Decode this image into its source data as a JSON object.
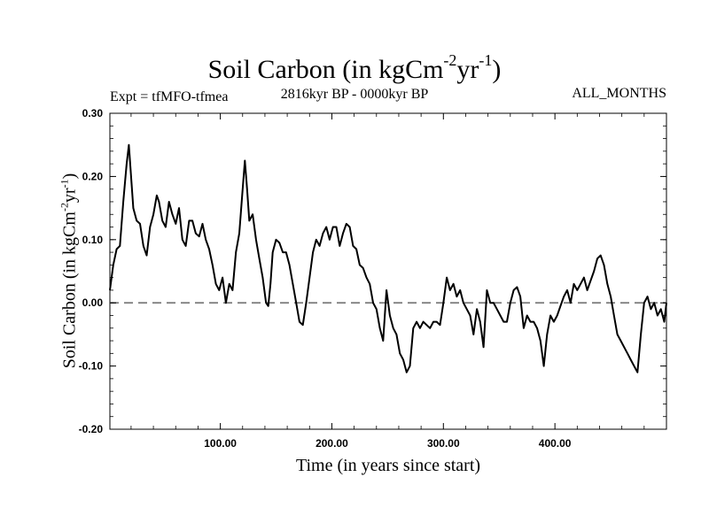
{
  "chart_data": {
    "type": "line",
    "title": "Soil Carbon (in kgCm-2yr-1)",
    "title_parts": {
      "base": "Soil Carbon (in kgCm",
      "exp1": "-2",
      "mid": "yr",
      "exp2": "-1",
      "end": ")"
    },
    "subtitle_left": "Expt = tfMFO-tfmea",
    "subtitle_center": "2816kyr BP - 0000kyr BP",
    "subtitle_right": "ALL_MONTHS",
    "xlabel": "Time (in years since start)",
    "ylabel": "Soil Carbon (in kgCm-2yr-1)",
    "ylabel_parts": {
      "base": "Soil Carbon (in kgCm",
      "exp1": "-2",
      "mid": "yr",
      "exp2": "-1",
      "end": ")"
    },
    "xlim": [
      1,
      500
    ],
    "ylim": [
      -0.2,
      0.3
    ],
    "xticks": [
      100,
      200,
      300,
      400
    ],
    "xtick_labels": [
      "100.00",
      "200.00",
      "300.00",
      "400.00"
    ],
    "yticks": [
      -0.2,
      -0.1,
      0.0,
      0.1,
      0.2,
      0.3
    ],
    "ytick_labels": [
      "-0.20",
      "-0.10",
      "0.00",
      "0.10",
      "0.20",
      "0.30"
    ],
    "reference_line": {
      "y": 0.0,
      "style": "dashed",
      "color": "#808080"
    },
    "series": [
      {
        "name": "Soil Carbon",
        "color": "#000000",
        "x": [
          1,
          4,
          7,
          10,
          13,
          16,
          18,
          20,
          22,
          25,
          28,
          31,
          34,
          37,
          40,
          43,
          45,
          48,
          51,
          54,
          57,
          60,
          63,
          66,
          69,
          72,
          75,
          78,
          81,
          84,
          87,
          90,
          93,
          96,
          99,
          102,
          105,
          108,
          111,
          114,
          117,
          120,
          122,
          124,
          126,
          129,
          132,
          135,
          138,
          141,
          143,
          145,
          147,
          150,
          153,
          156,
          159,
          162,
          165,
          168,
          171,
          174,
          177,
          180,
          183,
          186,
          189,
          192,
          195,
          198,
          201,
          204,
          207,
          210,
          213,
          216,
          219,
          222,
          225,
          228,
          231,
          234,
          237,
          240,
          243,
          246,
          249,
          252,
          255,
          258,
          261,
          264,
          267,
          270,
          273,
          276,
          279,
          282,
          285,
          288,
          291,
          294,
          297,
          300,
          303,
          306,
          309,
          312,
          315,
          318,
          321,
          324,
          327,
          330,
          333,
          336,
          339,
          342,
          345,
          348,
          351,
          354,
          357,
          360,
          363,
          366,
          369,
          372,
          375,
          378,
          381,
          384,
          387,
          390,
          393,
          396,
          399,
          402,
          405,
          408,
          411,
          414,
          417,
          420,
          423,
          426,
          429,
          432,
          435,
          438,
          441,
          444,
          447,
          450,
          453,
          456,
          459,
          462,
          465,
          468,
          471,
          474,
          477,
          480,
          483,
          486,
          489,
          492,
          495,
          498,
          500
        ],
        "y": [
          0.02,
          0.06,
          0.085,
          0.09,
          0.16,
          0.22,
          0.25,
          0.2,
          0.15,
          0.13,
          0.125,
          0.09,
          0.075,
          0.12,
          0.14,
          0.17,
          0.16,
          0.13,
          0.12,
          0.16,
          0.14,
          0.125,
          0.15,
          0.1,
          0.09,
          0.13,
          0.13,
          0.11,
          0.105,
          0.125,
          0.1,
          0.085,
          0.06,
          0.03,
          0.02,
          0.04,
          0.0,
          0.03,
          0.02,
          0.08,
          0.11,
          0.18,
          0.225,
          0.18,
          0.13,
          0.14,
          0.1,
          0.07,
          0.04,
          0.0,
          -0.005,
          0.03,
          0.08,
          0.1,
          0.095,
          0.08,
          0.08,
          0.06,
          0.03,
          0.0,
          -0.03,
          -0.035,
          0.0,
          0.04,
          0.08,
          0.1,
          0.09,
          0.11,
          0.12,
          0.1,
          0.12,
          0.12,
          0.09,
          0.11,
          0.125,
          0.12,
          0.09,
          0.085,
          0.06,
          0.055,
          0.04,
          0.03,
          0.0,
          -0.01,
          -0.04,
          -0.06,
          0.02,
          -0.02,
          -0.04,
          -0.05,
          -0.08,
          -0.09,
          -0.11,
          -0.1,
          -0.04,
          -0.03,
          -0.04,
          -0.03,
          -0.035,
          -0.04,
          -0.03,
          -0.03,
          -0.035,
          0.0,
          0.04,
          0.02,
          0.03,
          0.01,
          0.02,
          0.0,
          -0.01,
          -0.02,
          -0.05,
          -0.01,
          -0.03,
          -0.07,
          0.02,
          0.0,
          0.0,
          -0.01,
          -0.02,
          -0.03,
          -0.03,
          0.0,
          0.02,
          0.025,
          0.01,
          -0.04,
          -0.02,
          -0.03,
          -0.03,
          -0.04,
          -0.06,
          -0.1,
          -0.05,
          -0.02,
          -0.03,
          -0.02,
          -0.005,
          0.01,
          0.02,
          0.0,
          0.03,
          0.02,
          0.03,
          0.04,
          0.02,
          0.035,
          0.05,
          0.07,
          0.075,
          0.06,
          0.03,
          0.01,
          -0.02,
          -0.05,
          -0.06,
          -0.07,
          -0.08,
          -0.09,
          -0.1,
          -0.11,
          -0.05,
          0.0,
          0.01,
          -0.01,
          0.0,
          -0.02,
          -0.01,
          -0.03,
          0.0
        ]
      }
    ]
  }
}
